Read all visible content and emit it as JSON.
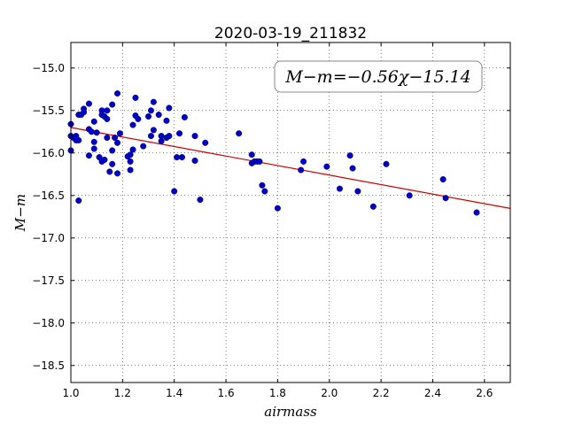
{
  "chart_data": {
    "type": "scatter",
    "title": "2020-03-19_211832",
    "xlabel": "airmass",
    "ylabel": "M−m",
    "xlim": [
      1.0,
      2.7
    ],
    "ylim": [
      -18.7,
      -14.7
    ],
    "xticks": [
      1.0,
      1.2,
      1.4,
      1.6,
      1.8,
      2.0,
      2.2,
      2.4,
      2.6
    ],
    "xtick_labels": [
      "1.0",
      "1.2",
      "1.4",
      "1.6",
      "1.8",
      "2.0",
      "2.2",
      "2.4",
      "2.6"
    ],
    "yticks": [
      -15.0,
      -15.5,
      -16.0,
      -16.5,
      -17.0,
      -17.5,
      -18.0,
      -18.5
    ],
    "ytick_labels": [
      "−15.0",
      "−15.5",
      "−16.0",
      "−16.5",
      "−17.0",
      "−17.5",
      "−18.0",
      "−18.5"
    ],
    "grid": true,
    "annotation": "M−m=−0.56χ−15.14",
    "annotation_position": "top-right",
    "point_color": "#0000cc",
    "fit_line": {
      "slope": -0.56,
      "intercept": -15.14,
      "color": "#cc0000"
    },
    "points": [
      [
        1.0,
        -15.66
      ],
      [
        1.0,
        -15.8
      ],
      [
        1.0,
        -15.97
      ],
      [
        1.01,
        -15.82
      ],
      [
        1.02,
        -15.8
      ],
      [
        1.02,
        -15.85
      ],
      [
        1.03,
        -15.55
      ],
      [
        1.03,
        -15.85
      ],
      [
        1.03,
        -16.56
      ],
      [
        1.04,
        -15.55
      ],
      [
        1.05,
        -15.48
      ],
      [
        1.05,
        -15.52
      ],
      [
        1.07,
        -15.42
      ],
      [
        1.07,
        -15.72
      ],
      [
        1.07,
        -16.03
      ],
      [
        1.08,
        -15.75
      ],
      [
        1.09,
        -15.63
      ],
      [
        1.09,
        -15.87
      ],
      [
        1.09,
        -15.95
      ],
      [
        1.1,
        -15.76
      ],
      [
        1.11,
        -16.05
      ],
      [
        1.12,
        -15.5
      ],
      [
        1.12,
        -15.55
      ],
      [
        1.12,
        -16.1
      ],
      [
        1.13,
        -15.57
      ],
      [
        1.13,
        -16.08
      ],
      [
        1.14,
        -15.5
      ],
      [
        1.14,
        -15.6
      ],
      [
        1.14,
        -15.82
      ],
      [
        1.15,
        -16.22
      ],
      [
        1.16,
        -15.43
      ],
      [
        1.16,
        -15.97
      ],
      [
        1.16,
        -16.13
      ],
      [
        1.17,
        -15.82
      ],
      [
        1.18,
        -15.3
      ],
      [
        1.18,
        -15.88
      ],
      [
        1.18,
        -16.24
      ],
      [
        1.19,
        -15.77
      ],
      [
        1.22,
        -16.04
      ],
      [
        1.23,
        -16.02
      ],
      [
        1.23,
        -16.1
      ],
      [
        1.23,
        -16.2
      ],
      [
        1.24,
        -15.67
      ],
      [
        1.24,
        -15.96
      ],
      [
        1.25,
        -15.35
      ],
      [
        1.25,
        -15.56
      ],
      [
        1.26,
        -15.6
      ],
      [
        1.28,
        -15.92
      ],
      [
        1.3,
        -15.57
      ],
      [
        1.31,
        -15.5
      ],
      [
        1.31,
        -15.8
      ],
      [
        1.32,
        -15.4
      ],
      [
        1.32,
        -15.73
      ],
      [
        1.34,
        -15.55
      ],
      [
        1.35,
        -15.8
      ],
      [
        1.35,
        -15.86
      ],
      [
        1.37,
        -15.82
      ],
      [
        1.37,
        -15.62
      ],
      [
        1.38,
        -15.47
      ],
      [
        1.38,
        -15.8
      ],
      [
        1.4,
        -16.45
      ],
      [
        1.41,
        -16.05
      ],
      [
        1.42,
        -15.77
      ],
      [
        1.43,
        -16.05
      ],
      [
        1.44,
        -15.58
      ],
      [
        1.48,
        -15.8
      ],
      [
        1.48,
        -16.09
      ],
      [
        1.5,
        -16.55
      ],
      [
        1.52,
        -15.88
      ],
      [
        1.65,
        -15.77
      ],
      [
        1.7,
        -16.12
      ],
      [
        1.7,
        -16.02
      ],
      [
        1.71,
        -16.1
      ],
      [
        1.72,
        -16.1
      ],
      [
        1.73,
        -16.1
      ],
      [
        1.74,
        -16.38
      ],
      [
        1.75,
        -16.45
      ],
      [
        1.8,
        -16.65
      ],
      [
        1.89,
        -16.2
      ],
      [
        1.9,
        -16.1
      ],
      [
        1.99,
        -16.16
      ],
      [
        2.04,
        -16.42
      ],
      [
        2.08,
        -16.03
      ],
      [
        2.09,
        -16.18
      ],
      [
        2.11,
        -16.45
      ],
      [
        2.17,
        -16.63
      ],
      [
        2.22,
        -16.13
      ],
      [
        2.31,
        -16.5
      ],
      [
        2.44,
        -16.31
      ],
      [
        2.45,
        -16.53
      ],
      [
        2.57,
        -16.7
      ]
    ]
  }
}
